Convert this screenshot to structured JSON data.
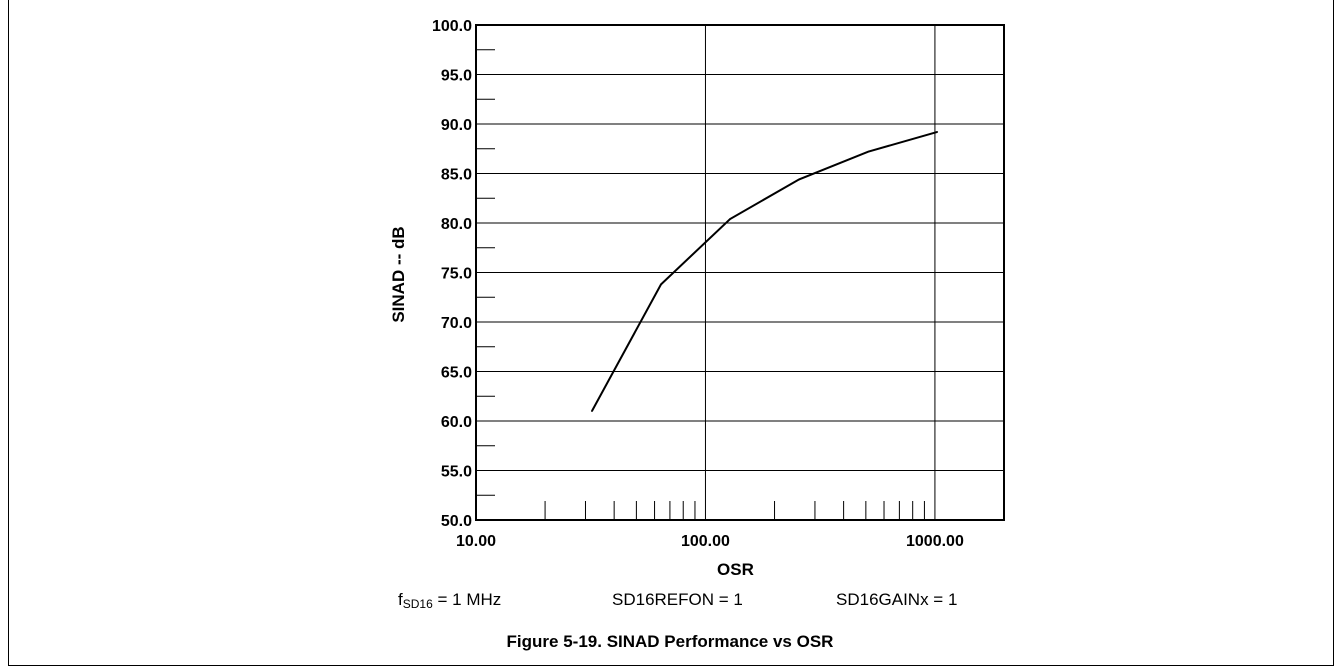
{
  "chart_data": {
    "type": "line",
    "xlabel": "OSR",
    "ylabel": "SINAD -- dB",
    "x_scale": "log",
    "xlim": [
      10,
      2000
    ],
    "ylim": [
      50,
      100
    ],
    "x_tick_labels": [
      "10.00",
      "100.00",
      "1000.00"
    ],
    "x_tick_values": [
      10,
      100,
      1000
    ],
    "y_tick_labels": [
      "50.0",
      "55.0",
      "60.0",
      "65.0",
      "70.0",
      "75.0",
      "80.0",
      "85.0",
      "90.0",
      "95.0",
      "100.0"
    ],
    "y_tick_values": [
      50,
      55,
      60,
      65,
      70,
      75,
      80,
      85,
      90,
      95,
      100
    ],
    "grid": true,
    "series": [
      {
        "x": [
          32,
          64,
          128,
          256,
          512,
          1024
        ],
        "y": [
          61,
          73.8,
          80.4,
          84.4,
          87.2,
          89.2
        ]
      }
    ]
  },
  "conditions": {
    "fsd16_prefix": "f",
    "fsd16_sub": "SD16",
    "fsd16_value": " = 1 MHz",
    "refon": "SD16REFON = 1",
    "gain": "SD16GAINx = 1"
  },
  "caption": "Figure 5-19. SINAD Performance vs OSR"
}
